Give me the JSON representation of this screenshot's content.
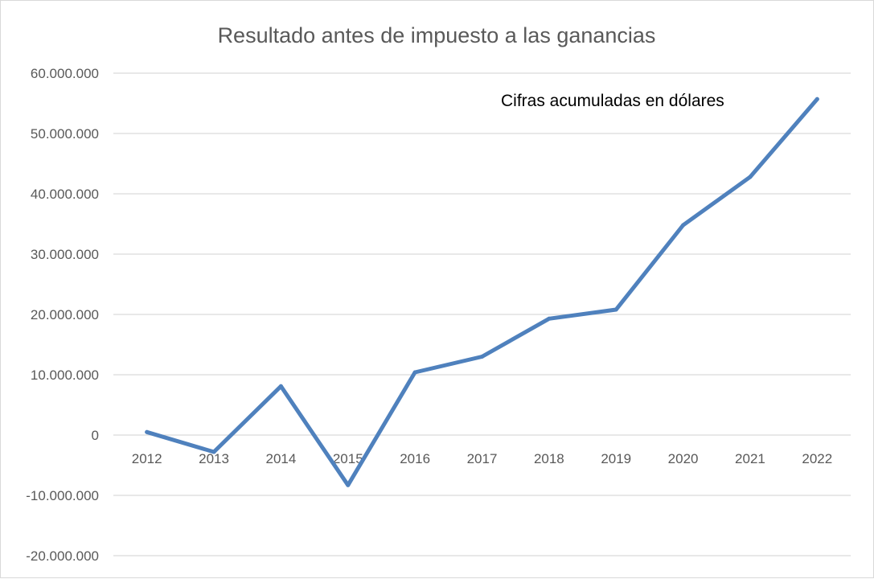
{
  "chart_data": {
    "type": "line",
    "title": "Resultado antes de impuesto a las ganancias",
    "annotation": "Cifras acumuladas en dólares",
    "xlabel": "",
    "ylabel": "",
    "categories": [
      "2012",
      "2013",
      "2014",
      "2015",
      "2016",
      "2017",
      "2018",
      "2019",
      "2020",
      "2021",
      "2022"
    ],
    "series": [
      {
        "values": [
          500000,
          -2800000,
          8100000,
          -8300000,
          10400000,
          13000000,
          19300000,
          20800000,
          34800000,
          42800000,
          55700000
        ]
      }
    ],
    "ylim": [
      -20000000,
      60000000
    ],
    "yticks": [
      60000000,
      50000000,
      40000000,
      30000000,
      20000000,
      10000000,
      0,
      -10000000,
      -20000000
    ],
    "ytick_labels": [
      "60.000.000",
      "50.000.000",
      "40.000.000",
      "30.000.000",
      "20.000.000",
      "10.000.000",
      "0",
      "-10.000.000",
      "-20.000.000"
    ],
    "grid": true,
    "legend": "none",
    "colors": {
      "line": "#4f81bd",
      "grid": "#d9d9d9",
      "text": "#595959"
    }
  }
}
